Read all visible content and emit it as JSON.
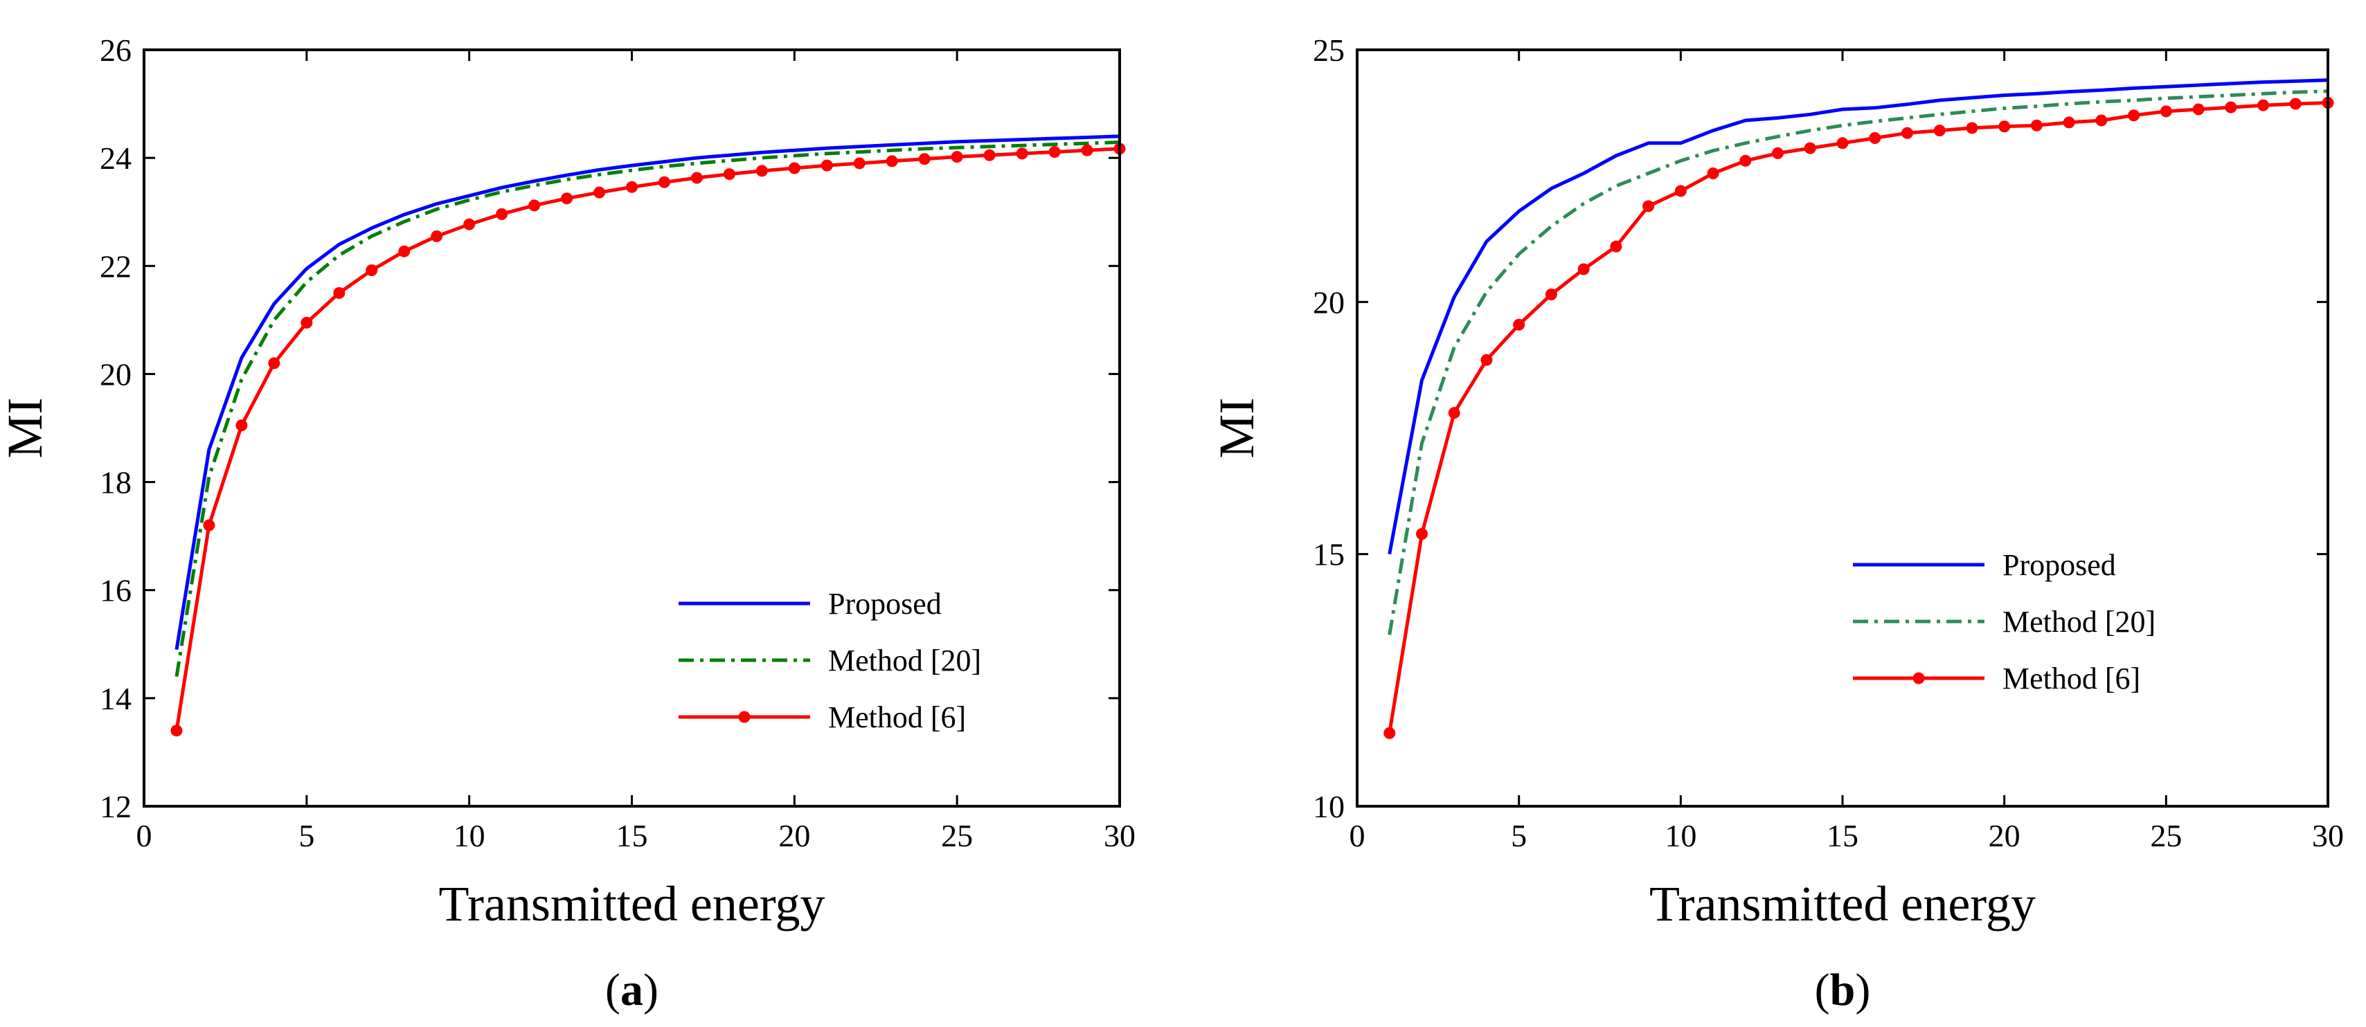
{
  "chart_data": [
    {
      "type": "line",
      "panel_label": "a",
      "xlabel": "Transmitted energy",
      "ylabel": "MI",
      "xlim": [
        0,
        30
      ],
      "ylim": [
        12,
        26
      ],
      "xticks": [
        0,
        5,
        10,
        15,
        20,
        25,
        30
      ],
      "yticks": [
        12,
        14,
        16,
        18,
        20,
        22,
        24,
        26
      ],
      "legend_position": "bottom-right",
      "x": [
        1,
        2,
        3,
        4,
        5,
        6,
        7,
        8,
        9,
        10,
        11,
        12,
        13,
        14,
        15,
        16,
        17,
        18,
        19,
        20,
        21,
        22,
        23,
        24,
        25,
        26,
        27,
        28,
        29,
        30
      ],
      "series": [
        {
          "name": "Proposed",
          "color": "#0000ff",
          "style": "solid",
          "markers": false,
          "values": [
            14.9,
            18.6,
            20.3,
            21.3,
            21.95,
            22.4,
            22.7,
            22.95,
            23.15,
            23.3,
            23.45,
            23.57,
            23.68,
            23.78,
            23.86,
            23.93,
            24.0,
            24.05,
            24.1,
            24.14,
            24.18,
            24.21,
            24.24,
            24.27,
            24.3,
            24.32,
            24.34,
            24.36,
            24.38,
            24.4
          ]
        },
        {
          "name": "Method [20]",
          "color": "#008000",
          "style": "dashdot",
          "markers": false,
          "values": [
            14.4,
            18.1,
            19.9,
            21.0,
            21.7,
            22.2,
            22.55,
            22.82,
            23.05,
            23.22,
            23.37,
            23.49,
            23.6,
            23.69,
            23.77,
            23.84,
            23.9,
            23.95,
            24.0,
            24.04,
            24.08,
            24.11,
            24.14,
            24.17,
            24.19,
            24.21,
            24.23,
            24.25,
            24.27,
            24.29
          ]
        },
        {
          "name": "Method [6]",
          "color": "#ff0000",
          "style": "solid",
          "markers": true,
          "values": [
            13.4,
            17.2,
            19.05,
            20.2,
            20.95,
            21.5,
            21.92,
            22.27,
            22.55,
            22.77,
            22.96,
            23.12,
            23.25,
            23.36,
            23.46,
            23.55,
            23.63,
            23.7,
            23.76,
            23.81,
            23.86,
            23.9,
            23.94,
            23.98,
            24.02,
            24.05,
            24.08,
            24.11,
            24.14,
            24.17
          ]
        }
      ]
    },
    {
      "type": "line",
      "panel_label": "b",
      "xlabel": "Transmitted energy",
      "ylabel": "MI",
      "xlim": [
        0,
        30
      ],
      "ylim": [
        10,
        25
      ],
      "xticks": [
        0,
        5,
        10,
        15,
        20,
        25,
        30
      ],
      "yticks": [
        10,
        15,
        20,
        25
      ],
      "legend_position": "middle-right",
      "x": [
        1,
        2,
        3,
        4,
        5,
        6,
        7,
        8,
        9,
        10,
        11,
        12,
        13,
        14,
        15,
        16,
        17,
        18,
        19,
        20,
        21,
        22,
        23,
        24,
        25,
        26,
        27,
        28,
        29,
        30
      ],
      "series": [
        {
          "name": "Proposed",
          "color": "#0000ff",
          "style": "solid",
          "markers": false,
          "values": [
            15.0,
            18.45,
            20.1,
            21.2,
            21.8,
            22.25,
            22.55,
            22.9,
            23.15,
            23.15,
            23.4,
            23.6,
            23.65,
            23.72,
            23.82,
            23.85,
            23.92,
            24.0,
            24.05,
            24.1,
            24.13,
            24.17,
            24.2,
            24.24,
            24.27,
            24.3,
            24.33,
            24.36,
            24.38,
            24.4
          ]
        },
        {
          "name": "Method [20]",
          "color": "#2e8b57",
          "style": "dashdot",
          "markers": false,
          "values": [
            13.4,
            17.2,
            19.1,
            20.2,
            20.95,
            21.5,
            21.95,
            22.3,
            22.55,
            22.8,
            23.0,
            23.15,
            23.28,
            23.4,
            23.5,
            23.58,
            23.65,
            23.72,
            23.78,
            23.84,
            23.88,
            23.93,
            23.97,
            24.0,
            24.04,
            24.07,
            24.1,
            24.13,
            24.16,
            24.18
          ]
        },
        {
          "name": "Method [6]",
          "color": "#ff0000",
          "style": "solid",
          "markers": true,
          "values": [
            11.45,
            15.4,
            17.8,
            18.85,
            19.55,
            20.15,
            20.65,
            21.1,
            21.9,
            22.2,
            22.55,
            22.8,
            22.95,
            23.05,
            23.15,
            23.25,
            23.35,
            23.4,
            23.45,
            23.48,
            23.5,
            23.56,
            23.6,
            23.7,
            23.78,
            23.82,
            23.86,
            23.9,
            23.93,
            23.95
          ]
        }
      ]
    }
  ]
}
